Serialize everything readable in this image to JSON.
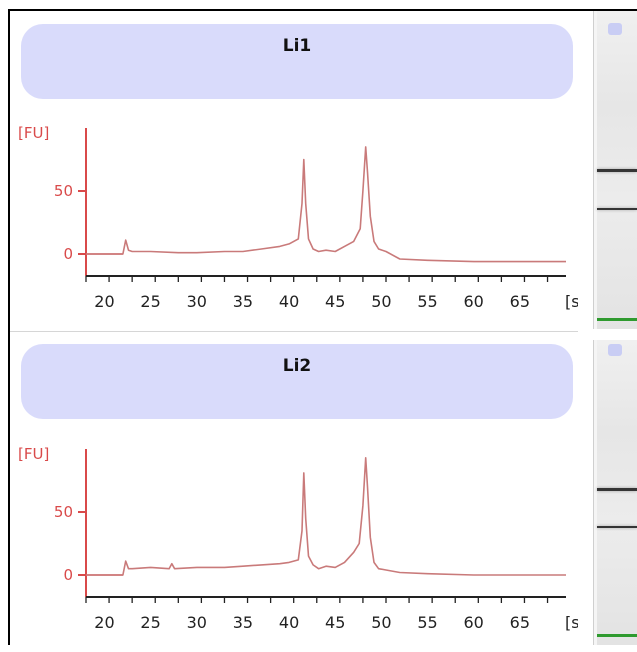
{
  "panels": [
    {
      "title": "Li1",
      "chart_data": {
        "type": "line",
        "ylabel": "[FU]",
        "xlabel": "[s]",
        "x_ticks": [
          20,
          25,
          30,
          35,
          40,
          45,
          50,
          55,
          60,
          65
        ],
        "y_ticks": [
          0,
          50
        ],
        "xlim": [
          18,
          70
        ],
        "ylim": [
          -15,
          100
        ],
        "series": [
          {
            "x": [
              18,
              22.0,
              22.3,
              22.6,
              23,
              25,
              28,
              30,
              33,
              35,
              37,
              39,
              40,
              41.0,
              41.4,
              41.6,
              41.8,
              42.1,
              42.6,
              43.2,
              44,
              45,
              46,
              47,
              47.7,
              48.0,
              48.3,
              48.5,
              48.8,
              49.2,
              49.7,
              50.5,
              52,
              55,
              60,
              65,
              70
            ],
            "y": [
              0,
              0,
              11,
              3,
              2,
              2,
              1,
              1,
              2,
              2,
              4,
              6,
              8,
              12,
              40,
              75,
              40,
              12,
              4,
              2,
              3,
              2,
              6,
              10,
              20,
              50,
              85,
              65,
              30,
              10,
              4,
              2,
              -4,
              -5,
              -6,
              -6,
              -6
            ]
          }
        ]
      }
    },
    {
      "title": "Li2",
      "chart_data": {
        "type": "line",
        "ylabel": "[FU]",
        "xlabel": "[s]",
        "x_ticks": [
          20,
          25,
          30,
          35,
          40,
          45,
          50,
          55,
          60,
          65
        ],
        "y_ticks": [
          0,
          50
        ],
        "xlim": [
          18,
          70
        ],
        "ylim": [
          -15,
          100
        ],
        "series": [
          {
            "x": [
              18,
              22.0,
              22.3,
              22.6,
              23,
              25,
              27,
              27.3,
              27.6,
              30,
              33,
              35,
              37,
              39,
              40,
              41.0,
              41.4,
              41.6,
              41.8,
              42.1,
              42.6,
              43.2,
              44,
              45,
              46,
              47,
              47.6,
              48.0,
              48.3,
              48.5,
              48.8,
              49.2,
              49.7,
              50.5,
              52,
              55,
              60,
              65,
              70
            ],
            "y": [
              0,
              0,
              11,
              5,
              5,
              6,
              5,
              9,
              5,
              6,
              6,
              7,
              8,
              9,
              10,
              12,
              35,
              81,
              45,
              15,
              8,
              5,
              7,
              6,
              10,
              18,
              25,
              55,
              93,
              70,
              30,
              10,
              5,
              4,
              2,
              1,
              0,
              0,
              0
            ]
          }
        ]
      }
    }
  ],
  "colors": {
    "axis": "#d94a4a",
    "trace": "#c97a7a",
    "header": "#d9dbfb"
  }
}
